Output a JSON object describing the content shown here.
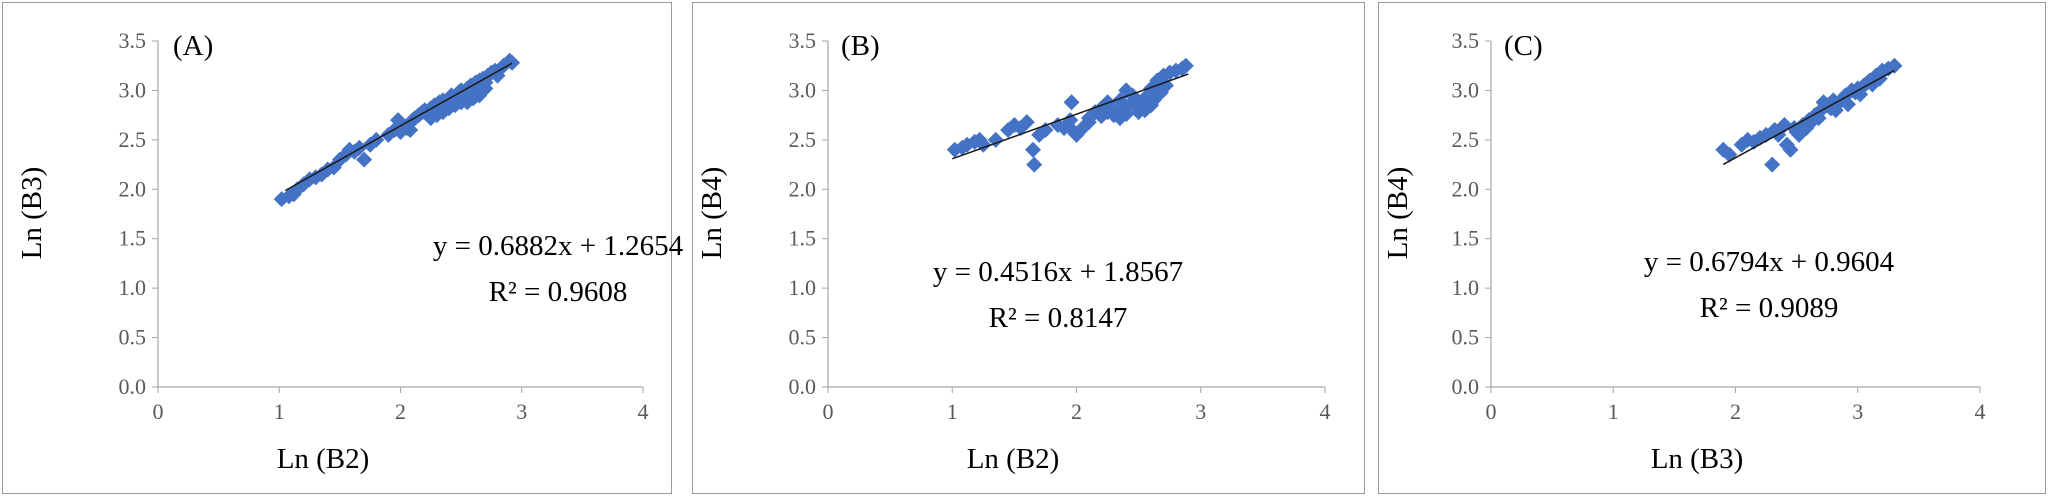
{
  "chart_data": [
    {
      "type": "scatter",
      "panel_label": "(A)",
      "xlabel": "Ln (B2)",
      "ylabel": "Ln (B3)",
      "xlim": [
        0,
        4
      ],
      "ylim": [
        0,
        3.5
      ],
      "xticks": [
        "0",
        "1",
        "2",
        "3",
        "4"
      ],
      "yticks": [
        "0.0",
        "0.5",
        "1.0",
        "1.5",
        "2.0",
        "2.5",
        "3.0",
        "3.5"
      ],
      "equation": "y = 0.6882x + 1.2654",
      "r2": "R² = 0.9608",
      "trendline": {
        "slope": 0.6882,
        "intercept": 1.2654,
        "x_range": [
          1.05,
          2.92
        ]
      },
      "marker_color": "#4472C4",
      "points": [
        [
          1.02,
          1.9
        ],
        [
          1.08,
          1.93
        ],
        [
          1.12,
          1.95
        ],
        [
          1.15,
          2.0
        ],
        [
          1.2,
          2.05
        ],
        [
          1.25,
          2.1
        ],
        [
          1.3,
          2.12
        ],
        [
          1.35,
          2.15
        ],
        [
          1.4,
          2.2
        ],
        [
          1.45,
          2.22
        ],
        [
          1.5,
          2.3
        ],
        [
          1.55,
          2.35
        ],
        [
          1.58,
          2.4
        ],
        [
          1.62,
          2.38
        ],
        [
          1.66,
          2.42
        ],
        [
          1.7,
          2.3
        ],
        [
          1.75,
          2.45
        ],
        [
          1.8,
          2.5
        ],
        [
          1.9,
          2.55
        ],
        [
          1.95,
          2.6
        ],
        [
          1.98,
          2.7
        ],
        [
          2.0,
          2.58
        ],
        [
          2.02,
          2.65
        ],
        [
          2.05,
          2.62
        ],
        [
          2.08,
          2.6
        ],
        [
          2.1,
          2.7
        ],
        [
          2.12,
          2.72
        ],
        [
          2.15,
          2.75
        ],
        [
          2.18,
          2.78
        ],
        [
          2.2,
          2.8
        ],
        [
          2.22,
          2.76
        ],
        [
          2.25,
          2.82
        ],
        [
          2.28,
          2.85
        ],
        [
          2.3,
          2.8
        ],
        [
          2.32,
          2.88
        ],
        [
          2.35,
          2.9
        ],
        [
          2.38,
          2.85
        ],
        [
          2.4,
          2.92
        ],
        [
          2.42,
          2.95
        ],
        [
          2.45,
          2.9
        ],
        [
          2.48,
          2.98
        ],
        [
          2.5,
          3.0
        ],
        [
          2.52,
          2.95
        ],
        [
          2.55,
          3.02
        ],
        [
          2.58,
          3.05
        ],
        [
          2.6,
          3.0
        ],
        [
          2.62,
          3.08
        ],
        [
          2.65,
          3.1
        ],
        [
          2.68,
          3.12
        ],
        [
          2.7,
          3.08
        ],
        [
          2.72,
          3.15
        ],
        [
          2.75,
          3.18
        ],
        [
          2.78,
          3.2
        ],
        [
          2.8,
          3.15
        ],
        [
          2.85,
          3.25
        ],
        [
          2.9,
          3.3
        ],
        [
          2.92,
          3.28
        ],
        [
          2.35,
          2.78
        ],
        [
          2.45,
          2.85
        ],
        [
          2.55,
          2.88
        ],
        [
          2.65,
          2.95
        ],
        [
          2.25,
          2.72
        ],
        [
          2.4,
          2.82
        ],
        [
          2.6,
          2.92
        ],
        [
          2.7,
          3.02
        ],
        [
          2.5,
          2.88
        ],
        [
          2.3,
          2.75
        ]
      ]
    },
    {
      "type": "scatter",
      "panel_label": "(B)",
      "xlabel": "Ln (B2)",
      "ylabel": "Ln (B4)",
      "xlim": [
        0,
        4
      ],
      "ylim": [
        0,
        3.5
      ],
      "xticks": [
        "0",
        "1",
        "2",
        "3",
        "4"
      ],
      "yticks": [
        "0.0",
        "0.5",
        "1.0",
        "1.5",
        "2.0",
        "2.5",
        "3.0",
        "3.5"
      ],
      "equation": "y = 0.4516x + 1.8567",
      "r2": "R² = 0.8147",
      "trendline": {
        "slope": 0.4516,
        "intercept": 1.8567,
        "x_range": [
          1.0,
          2.9
        ]
      },
      "marker_color": "#4472C4",
      "points": [
        [
          1.02,
          2.4
        ],
        [
          1.08,
          2.42
        ],
        [
          1.12,
          2.45
        ],
        [
          1.18,
          2.48
        ],
        [
          1.22,
          2.5
        ],
        [
          1.25,
          2.45
        ],
        [
          1.35,
          2.5
        ],
        [
          1.45,
          2.6
        ],
        [
          1.5,
          2.65
        ],
        [
          1.55,
          2.62
        ],
        [
          1.6,
          2.68
        ],
        [
          1.65,
          2.4
        ],
        [
          1.66,
          2.25
        ],
        [
          1.7,
          2.55
        ],
        [
          1.75,
          2.6
        ],
        [
          1.85,
          2.65
        ],
        [
          1.9,
          2.62
        ],
        [
          1.95,
          2.7
        ],
        [
          1.96,
          2.88
        ],
        [
          1.98,
          2.58
        ],
        [
          2.0,
          2.55
        ],
        [
          2.05,
          2.62
        ],
        [
          2.1,
          2.72
        ],
        [
          2.15,
          2.78
        ],
        [
          2.2,
          2.82
        ],
        [
          2.25,
          2.88
        ],
        [
          2.3,
          2.8
        ],
        [
          2.35,
          2.9
        ],
        [
          2.4,
          3.0
        ],
        [
          2.45,
          2.95
        ],
        [
          2.5,
          2.85
        ],
        [
          2.55,
          2.92
        ],
        [
          2.6,
          3.02
        ],
        [
          2.62,
          2.9
        ],
        [
          2.65,
          3.1
        ],
        [
          2.7,
          3.15
        ],
        [
          2.72,
          3.05
        ],
        [
          2.75,
          3.18
        ],
        [
          2.8,
          3.2
        ],
        [
          2.85,
          3.22
        ],
        [
          2.88,
          3.25
        ],
        [
          2.3,
          2.75
        ],
        [
          2.4,
          2.82
        ],
        [
          2.5,
          2.78
        ],
        [
          2.6,
          2.85
        ],
        [
          2.68,
          2.98
        ],
        [
          2.25,
          2.78
        ],
        [
          2.35,
          2.72
        ],
        [
          2.45,
          2.88
        ],
        [
          2.55,
          2.8
        ],
        [
          2.65,
          2.95
        ],
        [
          2.2,
          2.74
        ],
        [
          2.1,
          2.68
        ],
        [
          2.4,
          2.76
        ]
      ]
    },
    {
      "type": "scatter",
      "panel_label": "(C)",
      "xlabel": "Ln (B3)",
      "ylabel": "Ln (B4)",
      "xlim": [
        0,
        4
      ],
      "ylim": [
        0,
        3.5
      ],
      "xticks": [
        "0",
        "1",
        "2",
        "3",
        "4"
      ],
      "yticks": [
        "0.0",
        "0.5",
        "1.0",
        "1.5",
        "2.0",
        "2.5",
        "3.0",
        "3.5"
      ],
      "equation": "y = 0.6794x + 0.9604",
      "r2": "R² = 0.9089",
      "trendline": {
        "slope": 0.6794,
        "intercept": 0.9604,
        "x_range": [
          1.9,
          3.3
        ]
      },
      "marker_color": "#4472C4",
      "points": [
        [
          1.9,
          2.4
        ],
        [
          1.95,
          2.35
        ],
        [
          2.05,
          2.45
        ],
        [
          2.1,
          2.5
        ],
        [
          2.15,
          2.48
        ],
        [
          2.2,
          2.52
        ],
        [
          2.25,
          2.55
        ],
        [
          2.3,
          2.25
        ],
        [
          2.32,
          2.6
        ],
        [
          2.35,
          2.55
        ],
        [
          2.4,
          2.65
        ],
        [
          2.42,
          2.45
        ],
        [
          2.45,
          2.4
        ],
        [
          2.48,
          2.62
        ],
        [
          2.5,
          2.58
        ],
        [
          2.55,
          2.65
        ],
        [
          2.6,
          2.7
        ],
        [
          2.65,
          2.75
        ],
        [
          2.7,
          2.8
        ],
        [
          2.72,
          2.88
        ],
        [
          2.75,
          2.85
        ],
        [
          2.8,
          2.9
        ],
        [
          2.85,
          2.88
        ],
        [
          2.9,
          2.95
        ],
        [
          2.95,
          3.0
        ],
        [
          3.0,
          3.02
        ],
        [
          3.05,
          3.05
        ],
        [
          3.1,
          3.1
        ],
        [
          3.15,
          3.15
        ],
        [
          3.2,
          3.2
        ],
        [
          3.25,
          3.22
        ],
        [
          3.3,
          3.25
        ],
        [
          2.78,
          2.82
        ],
        [
          2.88,
          2.92
        ],
        [
          2.98,
          2.98
        ],
        [
          3.08,
          3.08
        ],
        [
          3.18,
          3.12
        ],
        [
          2.68,
          2.72
        ],
        [
          2.58,
          2.62
        ],
        [
          2.92,
          2.86
        ],
        [
          3.02,
          2.96
        ],
        [
          3.12,
          3.06
        ],
        [
          2.82,
          2.8
        ],
        [
          2.62,
          2.68
        ],
        [
          2.52,
          2.55
        ]
      ]
    }
  ]
}
